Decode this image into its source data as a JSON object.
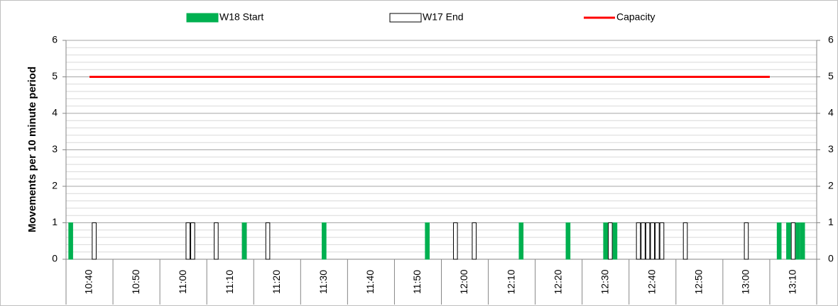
{
  "chart_data": {
    "type": "bar",
    "y_label": "Movements per 10 minute period",
    "xlim": [
      635,
      795
    ],
    "xticks": [
      {
        "value": 640,
        "label": "10:40"
      },
      {
        "value": 650,
        "label": "10:50"
      },
      {
        "value": 660,
        "label": "11:00"
      },
      {
        "value": 670,
        "label": "11:10"
      },
      {
        "value": 680,
        "label": "11:20"
      },
      {
        "value": 690,
        "label": "11:30"
      },
      {
        "value": 700,
        "label": "11:40"
      },
      {
        "value": 710,
        "label": "11:50"
      },
      {
        "value": 720,
        "label": "12:00"
      },
      {
        "value": 730,
        "label": "12:10"
      },
      {
        "value": 740,
        "label": "12:20"
      },
      {
        "value": 750,
        "label": "12:30"
      },
      {
        "value": 760,
        "label": "12:40"
      },
      {
        "value": 770,
        "label": "12:50"
      },
      {
        "value": 780,
        "label": "13:00"
      },
      {
        "value": 790,
        "label": "13:10"
      }
    ],
    "ylim": [
      0,
      6
    ],
    "yticks": [
      0,
      1,
      2,
      3,
      4,
      5,
      6
    ],
    "y2lim": [
      0,
      6
    ],
    "y2ticks": [
      0,
      1,
      2,
      3,
      4,
      5,
      6
    ],
    "grid": true,
    "legend": "top",
    "series": [
      {
        "name": "W17 End",
        "kind": "bar",
        "color": "#ffffff",
        "x": [
          641,
          661,
          662,
          667,
          673,
          678,
          718,
          722,
          751,
          757,
          758,
          759,
          760,
          761,
          762,
          767,
          780,
          790
        ],
        "values": [
          1,
          1,
          1,
          1,
          1,
          1,
          1,
          1,
          1,
          1,
          1,
          1,
          1,
          1,
          1,
          1,
          1,
          1
        ]
      },
      {
        "name": "W18 Start",
        "kind": "bar",
        "color": "#00b050",
        "x": [
          636,
          673,
          690,
          712,
          732,
          742,
          750,
          752,
          787,
          789,
          791,
          792
        ],
        "values": [
          1,
          1,
          1,
          1,
          1,
          1,
          1,
          1,
          1,
          1,
          1,
          1
        ]
      },
      {
        "name": "Capacity",
        "kind": "line",
        "color": "#ff0000",
        "x": [
          640,
          785
        ],
        "values": [
          5,
          5
        ]
      }
    ]
  }
}
